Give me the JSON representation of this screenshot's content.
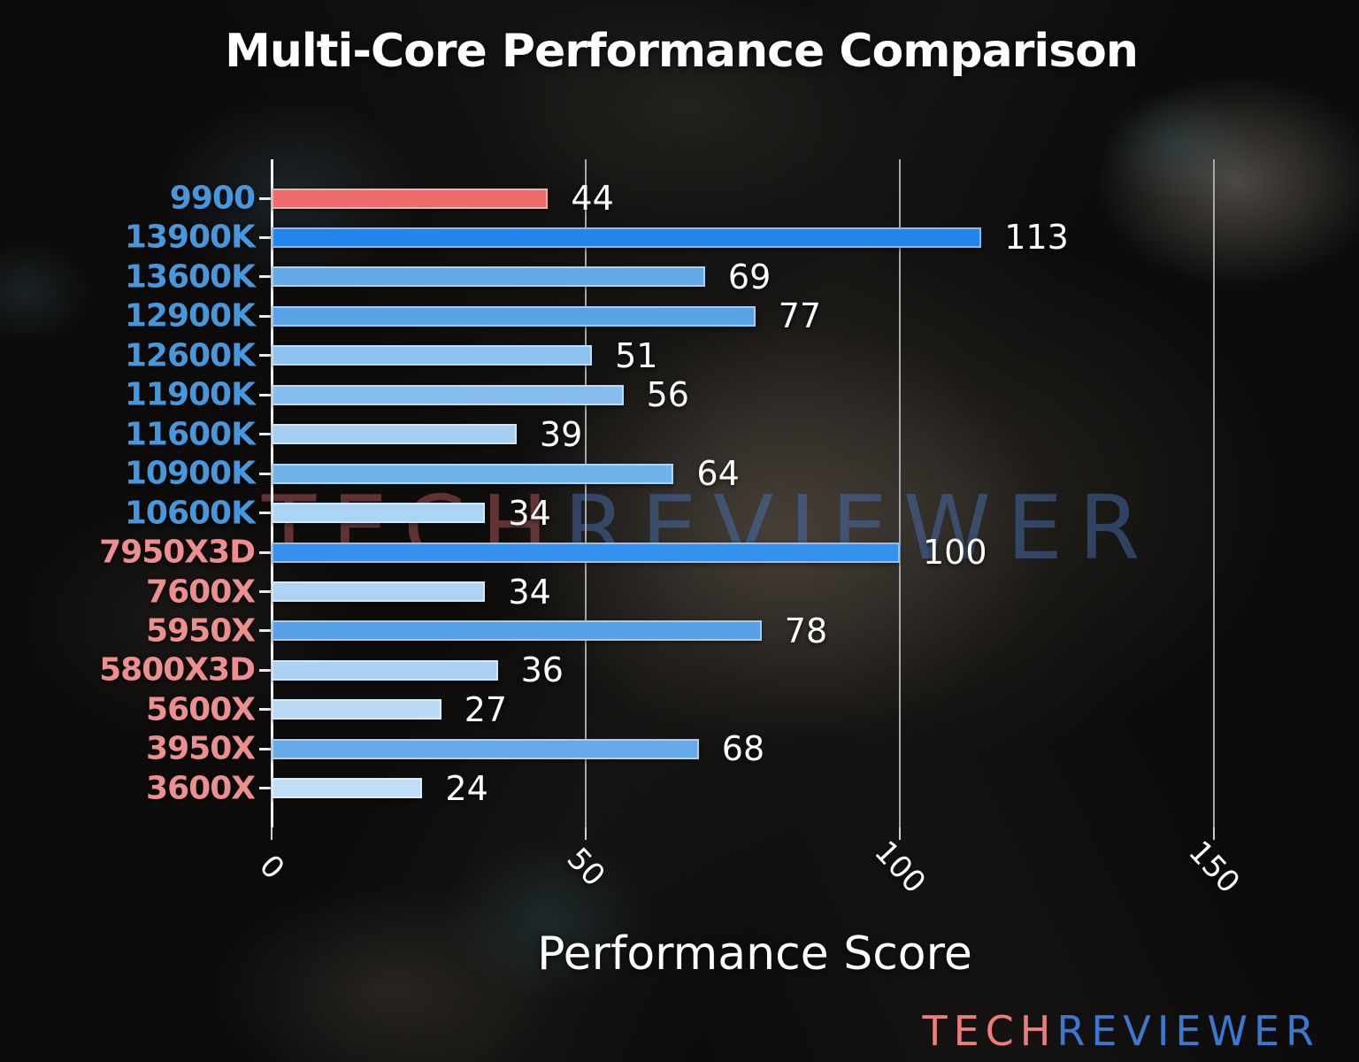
{
  "title": "Multi-Core Performance Comparison",
  "xlabel": "Performance Score",
  "watermark": {
    "part1": "TECH",
    "part2": "REVIEWER"
  },
  "logo": {
    "part1": "TECH",
    "part2": "REVIEWER"
  },
  "colors": {
    "title_text": "#ffffff",
    "value_text": "#ffffff",
    "tick_text": "#ffffff",
    "axis_line": "#f2f2f2",
    "gridline": "#a8a8a8",
    "intel_label": "#4797dc",
    "amd_label": "#ee8f8f",
    "highlight_bar": "#ed6b6b",
    "logo_tech": "#ed7d7d",
    "logo_reviewer": "#3b79d1"
  },
  "chart_data": {
    "type": "bar",
    "orientation": "horizontal",
    "title": "Multi-Core Performance Comparison",
    "xlabel": "Performance Score",
    "ylabel": "",
    "xlim": [
      0,
      167
    ],
    "xticks": [
      0,
      50,
      100,
      150
    ],
    "grid": true,
    "legend": false,
    "categories": [
      "9900",
      "13900K",
      "13600K",
      "12900K",
      "12600K",
      "11900K",
      "11600K",
      "10900K",
      "10600K",
      "7950X3D",
      "7600X",
      "5950X",
      "5800X3D",
      "5600X",
      "3950X",
      "3600X"
    ],
    "values": [
      44,
      113,
      69,
      77,
      51,
      56,
      39,
      64,
      34,
      100,
      34,
      78,
      36,
      27,
      68,
      24
    ],
    "bar_colors": [
      "#ed6b6b",
      "#2186eb",
      "#63aae8",
      "#5aa2e8",
      "#8ec2ef",
      "#85bdef",
      "#a5cff2",
      "#6fb3ea",
      "#aed4f4",
      "#3490ec",
      "#aed4f4",
      "#58a1e8",
      "#abd2f3",
      "#b8daf5",
      "#65abe9",
      "#bfdef6"
    ],
    "label_colors": [
      "#4797dc",
      "#4797dc",
      "#4797dc",
      "#4797dc",
      "#4797dc",
      "#4797dc",
      "#4797dc",
      "#4797dc",
      "#4797dc",
      "#ee8f8f",
      "#ee8f8f",
      "#ee8f8f",
      "#ee8f8f",
      "#ee8f8f",
      "#ee8f8f",
      "#ee8f8f"
    ]
  }
}
